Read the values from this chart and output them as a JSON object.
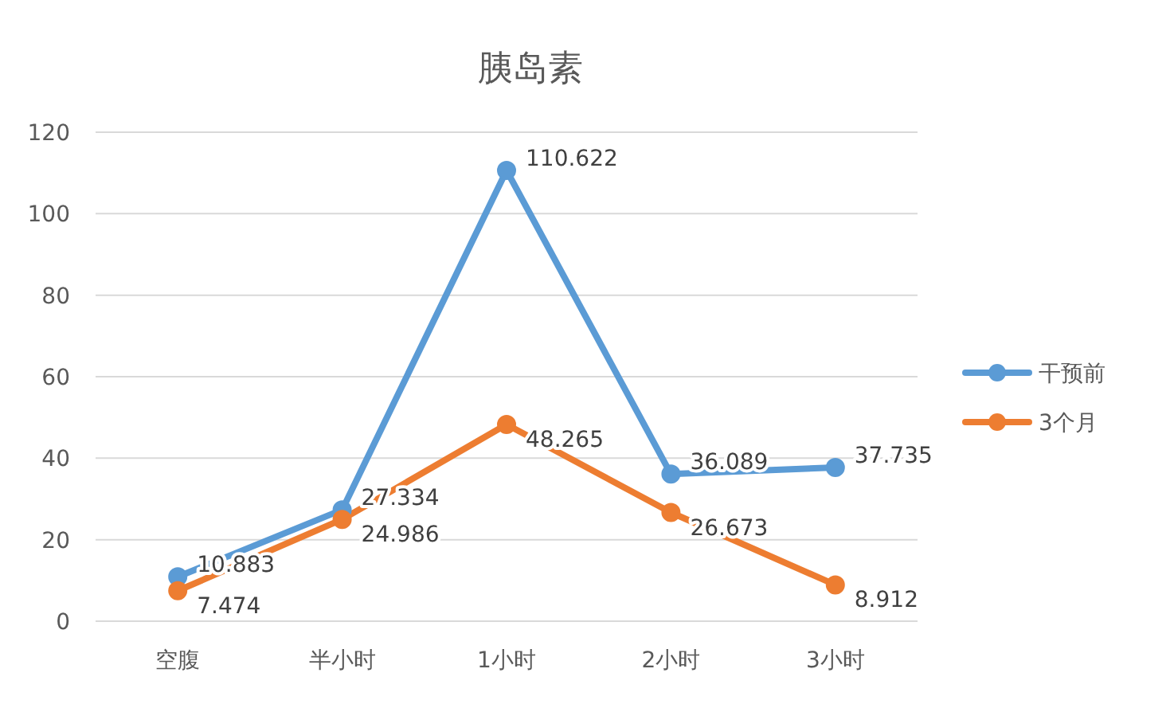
{
  "chart_data": {
    "type": "line",
    "title": "胰岛素",
    "categories": [
      "空腹",
      "半小时",
      "1小时",
      "2小时",
      "3小时"
    ],
    "series": [
      {
        "name": "干预前",
        "color": "#5b9bd5",
        "values": [
          10.883,
          27.334,
          110.622,
          36.089,
          37.735
        ]
      },
      {
        "name": "3个月",
        "color": "#ed7d31",
        "values": [
          7.474,
          24.986,
          48.265,
          26.673,
          8.912
        ]
      }
    ],
    "ylim": [
      0,
      120
    ],
    "yticks": [
      0,
      20,
      40,
      60,
      80,
      100,
      120
    ],
    "grid": "y",
    "legend": "right",
    "marker": "circle",
    "line_style": "solid",
    "data_labels": true
  }
}
